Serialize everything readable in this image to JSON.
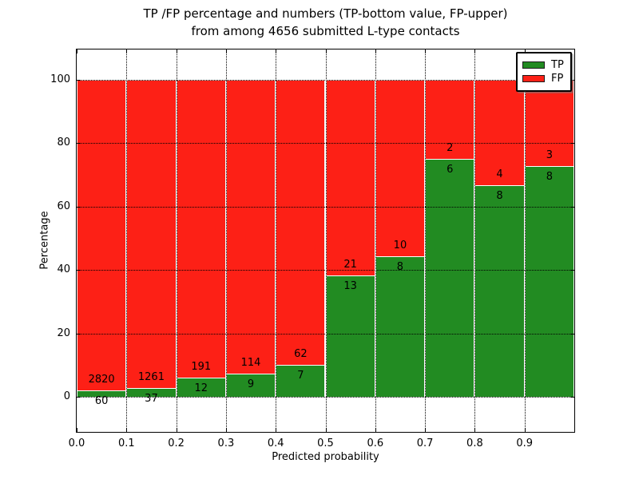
{
  "title": {
    "line1": "TP /FP percentage and numbers (TP-bottom value, FP-upper)",
    "line2": "from among 4656 submitted L-type contacts"
  },
  "chart_data": {
    "type": "bar",
    "stacked": true,
    "normalization": "each bin scaled to 100%, labels show raw counts (TP-bottom value, FP-upper)",
    "bin_start": [
      0.0,
      0.1,
      0.2,
      0.3,
      0.4,
      0.5,
      0.6,
      0.7,
      0.8,
      0.9
    ],
    "bin_width": 0.1,
    "series": [
      {
        "name": "TP",
        "color": "#228b22",
        "counts": [
          60,
          37,
          12,
          9,
          7,
          13,
          8,
          6,
          8,
          8
        ]
      },
      {
        "name": "FP",
        "color": "#fd2016",
        "counts": [
          2820,
          1261,
          191,
          114,
          62,
          21,
          10,
          2,
          4,
          3
        ]
      }
    ],
    "total_contacts": 4656,
    "xlabel": "Predicted probability",
    "ylabel": "Percentage",
    "x_tick_values": [
      0.0,
      0.1,
      0.2,
      0.3,
      0.4,
      0.5,
      0.6,
      0.7,
      0.8,
      0.9
    ],
    "x_tick_labels": [
      "0.0",
      "0.1",
      "0.2",
      "0.3",
      "0.4",
      "0.5",
      "0.6",
      "0.7",
      "0.8",
      "0.9"
    ],
    "y_tick_values": [
      0,
      20,
      40,
      60,
      80,
      100
    ],
    "y_tick_labels": [
      "0",
      "20",
      "40",
      "60",
      "80",
      "100"
    ],
    "xlim": [
      0.0,
      1.0
    ],
    "ylim": [
      -11.1,
      109.6
    ],
    "grid": {
      "on": true,
      "style": "dotted",
      "color": "#000000"
    },
    "bar_edge_color": "#ffffff",
    "axis_color": "#000000",
    "background": "#ffffff",
    "legend": {
      "position": "upper-right",
      "entries": [
        {
          "label": "TP",
          "color": "#228b22"
        },
        {
          "label": "FP",
          "color": "#fd2016"
        }
      ]
    }
  }
}
